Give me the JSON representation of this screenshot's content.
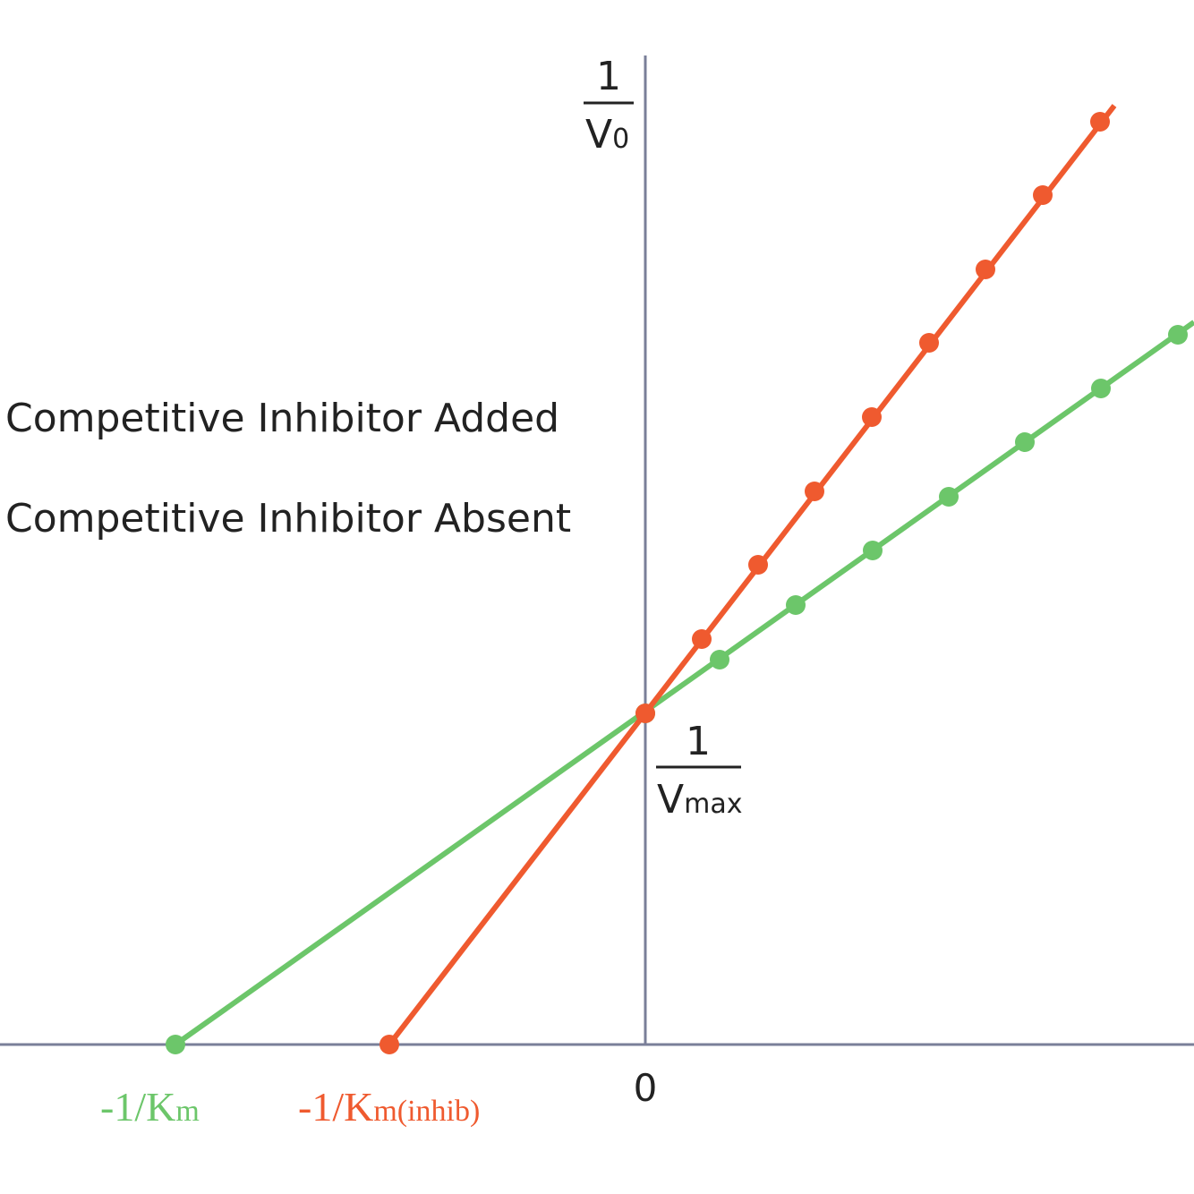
{
  "y_axis_label": {
    "numerator": "1",
    "denominator": "V",
    "subscript": "0"
  },
  "intercept_label": {
    "numerator": "1",
    "denominator": "V",
    "subscript": "max"
  },
  "legend": [
    "Competitive Inhibitor Added",
    "Competitive Inhibitor Absent"
  ],
  "x_intercepts": [
    {
      "label": "-1/K",
      "subscript": "m"
    },
    {
      "label": "-1/K",
      "subscript": "m(inhib)"
    }
  ],
  "origin_label": "0"
}
